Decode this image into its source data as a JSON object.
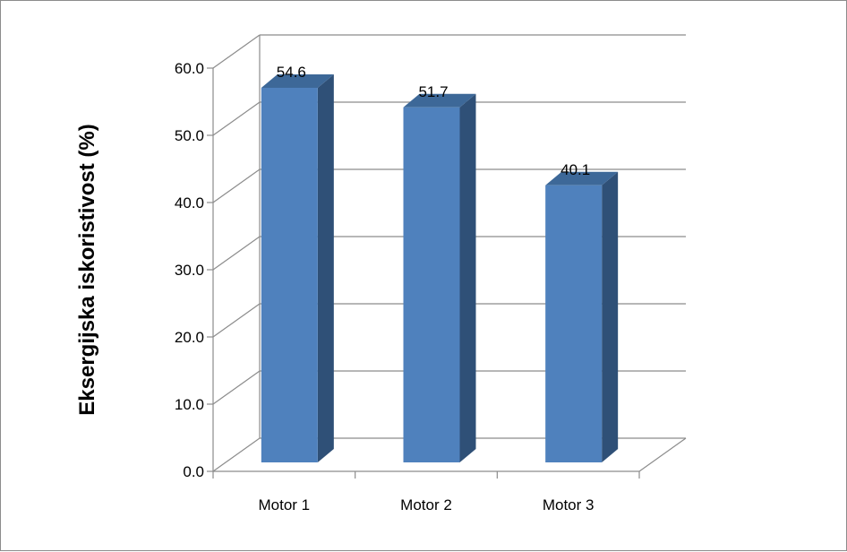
{
  "chart_data": {
    "type": "bar",
    "title": "",
    "xlabel": "",
    "ylabel": "Eksergijska iskoristivost (%)",
    "categories": [
      "Motor 1",
      "Motor 2",
      "Motor 3"
    ],
    "values": [
      54.6,
      51.7,
      40.1
    ],
    "data_labels": [
      "54.6",
      "51.7",
      "40.1"
    ],
    "ylim": [
      0,
      60
    ],
    "yticks": [
      "0.0",
      "10.0",
      "20.0",
      "30.0",
      "40.0",
      "50.0",
      "60.0"
    ],
    "grid": true,
    "legend": "none",
    "style": "3d-column",
    "colors": {
      "bar_front": "#4F81BD",
      "bar_side": "#2F5077",
      "bar_top": "#3D6898",
      "grid": "#8c8c8c"
    }
  }
}
